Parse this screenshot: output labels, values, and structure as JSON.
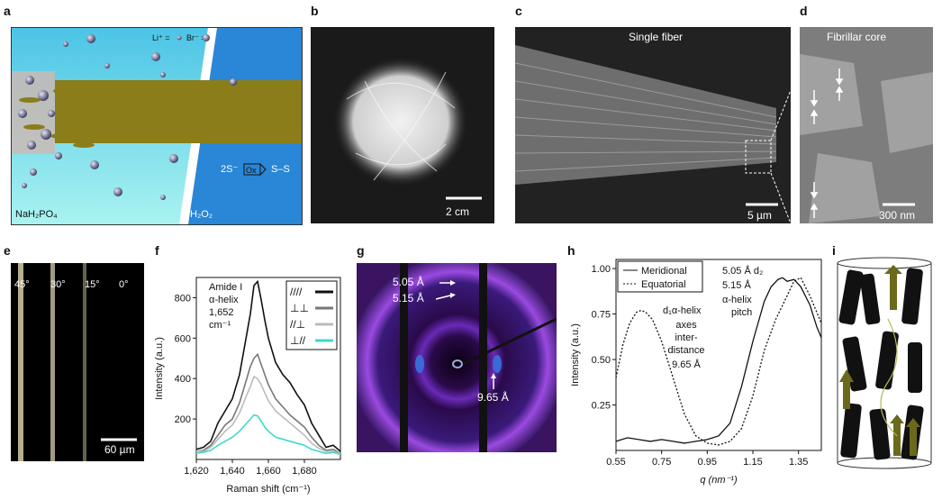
{
  "panel_labels": [
    "a",
    "b",
    "c",
    "d",
    "e",
    "f",
    "g",
    "h",
    "i"
  ],
  "panel_a": {
    "li_label": "Li⁺ =",
    "br_label": "Br⁻ =",
    "left_label": "NaH₂PO₄",
    "right_label": "H₂O₂",
    "reaction_left": "2S⁻",
    "reaction_box": "Ox",
    "reaction_right": "S–S"
  },
  "panel_b": {
    "scale": "2 cm"
  },
  "panel_c": {
    "title": "Single fiber",
    "scale": "5 µm"
  },
  "panel_d": {
    "title": "Fibrillar core",
    "scale": "300 nm"
  },
  "panel_e": {
    "angles": [
      "45°",
      "30°",
      "15°",
      "0°"
    ],
    "scale": "60 µm"
  },
  "panel_g": {
    "label_505": "5.05 Å",
    "label_515": "5.15 Å",
    "label_965": "9.65 Å"
  },
  "colors": {
    "water": "#6fe3e8",
    "water_right": "#2e8fd9",
    "fiber": "#8a7d1a",
    "raman_black": "#111111",
    "raman_dark_gray": "#777777",
    "raman_light_gray": "#bbbbbb",
    "raman_cyan": "#3fd9cf",
    "helix": "#6b6a1c"
  },
  "chart_data": [
    {
      "type": "line",
      "panel": "f",
      "xlabel": "Raman shift (cm⁻¹)",
      "ylabel": "Intensity (a.u.)",
      "xlim": [
        1620,
        1700
      ],
      "ylim": [
        0,
        900
      ],
      "x_ticks": [
        1620,
        1640,
        1660,
        1680
      ],
      "x_tick_labels": [
        "1,620",
        "1,640",
        "1,660",
        "1,680"
      ],
      "y_ticks": [
        200,
        400,
        600,
        800
      ],
      "annotation": [
        "Amide I",
        "α-helix",
        "1,652",
        "cm⁻¹"
      ],
      "legend_symbols": [
        "////",
        "⊥⊥",
        "//⊥",
        "⊥//"
      ],
      "x": [
        1620,
        1624,
        1628,
        1632,
        1636,
        1640,
        1644,
        1648,
        1650,
        1652,
        1654,
        1656,
        1658,
        1660,
        1664,
        1668,
        1672,
        1676,
        1680,
        1684,
        1688,
        1692,
        1696,
        1700
      ],
      "series": [
        {
          "color": "#111111",
          "values": [
            50,
            60,
            90,
            180,
            240,
            300,
            420,
            620,
            720,
            860,
            880,
            790,
            690,
            600,
            480,
            420,
            380,
            320,
            270,
            180,
            120,
            60,
            70,
            40
          ]
        },
        {
          "color": "#777777",
          "values": [
            40,
            45,
            70,
            120,
            170,
            200,
            280,
            400,
            460,
            500,
            520,
            470,
            420,
            370,
            300,
            260,
            220,
            190,
            160,
            110,
            70,
            45,
            50,
            30
          ]
        },
        {
          "color": "#bbbbbb",
          "values": [
            40,
            40,
            60,
            100,
            140,
            170,
            230,
            320,
            360,
            410,
            400,
            370,
            330,
            290,
            240,
            210,
            180,
            150,
            120,
            80,
            55,
            40,
            40,
            30
          ]
        },
        {
          "color": "#3fd9cf",
          "values": [
            30,
            35,
            45,
            70,
            90,
            110,
            140,
            180,
            200,
            220,
            215,
            190,
            160,
            140,
            110,
            100,
            90,
            80,
            70,
            50,
            40,
            30,
            35,
            25
          ]
        }
      ]
    },
    {
      "type": "line",
      "panel": "h",
      "xlabel": "q (nm⁻¹)",
      "ylabel": "Intensity (a.u.)",
      "xlim": [
        0.55,
        1.45
      ],
      "ylim": [
        0,
        1.05
      ],
      "x_ticks": [
        0.55,
        0.75,
        0.95,
        1.15,
        1.35
      ],
      "x_tick_labels": [
        "0.55",
        "0.75",
        "0.95",
        "1.15",
        "1.35"
      ],
      "y_ticks": [
        0.25,
        0.5,
        0.75,
        1.0
      ],
      "y_tick_labels": [
        "0.25",
        "0.50",
        "0.75",
        "1.00"
      ],
      "legend": [
        "Meridional",
        "Equatorial"
      ],
      "annotations": [
        "d₁α-helix",
        "axes",
        "inter-",
        "distance",
        "9.65 Å",
        "5.05 Å d₂",
        "5.15 Å",
        "α-helix",
        "pitch"
      ],
      "series": [
        {
          "name": "Meridional",
          "dash": "solid",
          "x": [
            0.55,
            0.6,
            0.65,
            0.7,
            0.75,
            0.8,
            0.85,
            0.9,
            0.95,
            1.0,
            1.05,
            1.1,
            1.15,
            1.2,
            1.23,
            1.26,
            1.28,
            1.3,
            1.33,
            1.36,
            1.4,
            1.43,
            1.45
          ],
          "values": [
            0.05,
            0.07,
            0.06,
            0.05,
            0.06,
            0.05,
            0.04,
            0.05,
            0.06,
            0.08,
            0.15,
            0.35,
            0.6,
            0.82,
            0.9,
            0.94,
            0.95,
            0.93,
            0.94,
            0.9,
            0.8,
            0.68,
            0.62
          ]
        },
        {
          "name": "Equatorial",
          "dash": "dotted",
          "x": [
            0.55,
            0.58,
            0.61,
            0.64,
            0.66,
            0.68,
            0.71,
            0.75,
            0.8,
            0.85,
            0.9,
            0.95,
            1.0,
            1.05,
            1.1,
            1.15,
            1.2,
            1.25,
            1.3,
            1.33,
            1.36,
            1.4,
            1.45
          ],
          "values": [
            0.4,
            0.58,
            0.7,
            0.76,
            0.77,
            0.76,
            0.72,
            0.6,
            0.4,
            0.2,
            0.08,
            0.04,
            0.03,
            0.05,
            0.12,
            0.3,
            0.55,
            0.72,
            0.85,
            0.93,
            0.95,
            0.85,
            0.7
          ]
        }
      ]
    }
  ]
}
